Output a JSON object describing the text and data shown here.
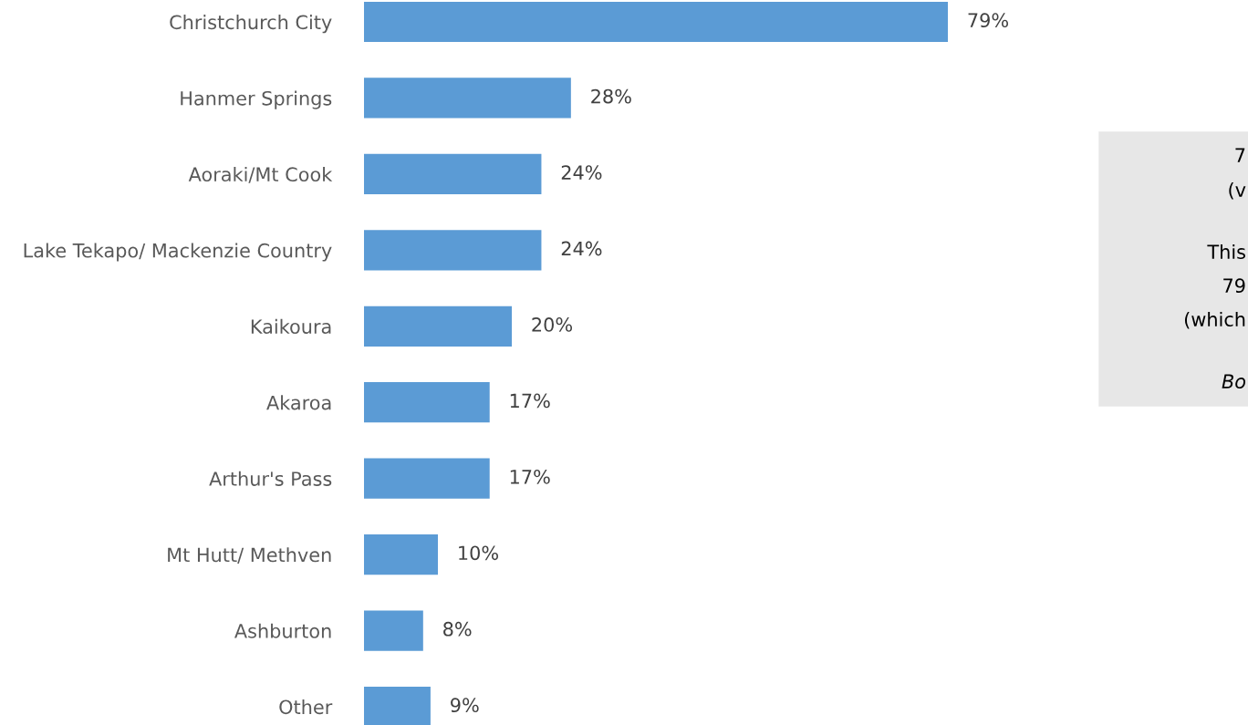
{
  "chart_data": {
    "type": "bar",
    "orientation": "horizontal",
    "categories": [
      "Christchurch City",
      "Hanmer Springs",
      "Aoraki/Mt Cook",
      "Lake Tekapo/ Mackenzie Country",
      "Kaikoura",
      "Akaroa",
      "Arthur's Pass",
      "Mt Hutt/ Methven",
      "Ashburton",
      "Other"
    ],
    "values": [
      79,
      28,
      24,
      24,
      20,
      17,
      17,
      10,
      8,
      9
    ],
    "value_labels": [
      "79%",
      "28%",
      "24%",
      "24%",
      "20%",
      "17%",
      "17%",
      "10%",
      "8%",
      "9%"
    ],
    "color": "#5b9bd5",
    "annotations": [
      "7",
      "(v",
      "This",
      "79",
      "(which",
      "Bo"
    ]
  }
}
